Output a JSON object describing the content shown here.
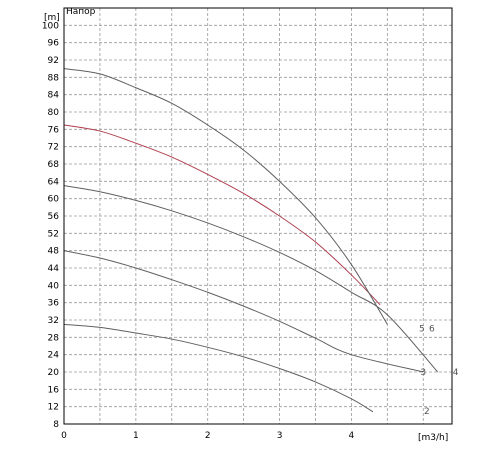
{
  "chart_data": {
    "type": "line",
    "title": "Напор",
    "ylabel": "[m]",
    "xlabel": "[m3/h]",
    "xlim": [
      0,
      5.4
    ],
    "ylim": [
      8,
      104
    ],
    "xticks": [
      0,
      1,
      2,
      3,
      4
    ],
    "yticks": [
      8,
      12,
      16,
      20,
      24,
      28,
      32,
      36,
      40,
      44,
      48,
      52,
      56,
      60,
      64,
      68,
      72,
      76,
      80,
      84,
      88,
      92,
      96,
      100
    ],
    "grid": true,
    "series": [
      {
        "name": "2",
        "color": "#606060",
        "x": [
          0,
          0.5,
          1,
          1.5,
          2,
          2.5,
          3,
          3.5,
          4,
          4.3
        ],
        "y": [
          31,
          30.3,
          29,
          27.6,
          25.7,
          23.5,
          20.8,
          17.7,
          13.8,
          10.8
        ]
      },
      {
        "name": "3",
        "color": "#606060",
        "x": [
          0,
          0.5,
          1,
          1.5,
          2,
          2.5,
          3,
          3.5,
          4,
          5.0
        ],
        "y": [
          48,
          46.3,
          44,
          41.3,
          38.4,
          35.2,
          31.7,
          27.8,
          24,
          20
        ]
      },
      {
        "name": "4",
        "color": "#606060",
        "x": [
          0,
          0.5,
          1,
          1.5,
          2,
          2.5,
          3,
          3.5,
          4,
          4.5,
          5.2
        ],
        "y": [
          63,
          61.6,
          59.6,
          57.2,
          54.4,
          51.2,
          47.6,
          43.4,
          38.4,
          33.2,
          20
        ]
      },
      {
        "name": "5",
        "color": "#b04050",
        "x": [
          0,
          0.5,
          1,
          1.5,
          2,
          2.5,
          3,
          3.5,
          4,
          4.4
        ],
        "y": [
          77,
          75.6,
          72.8,
          69.6,
          65.6,
          61.2,
          56,
          50,
          42.4,
          35.5
        ]
      },
      {
        "name": "6",
        "color": "#606060",
        "x": [
          0,
          0.5,
          1,
          1.5,
          2,
          2.5,
          3,
          3.5,
          4,
          4.5
        ],
        "y": [
          90,
          88.8,
          85.6,
          82,
          77,
          71.2,
          64,
          55.6,
          44.8,
          31
        ]
      }
    ],
    "end_labels": [
      {
        "text": "2",
        "x": 5.05,
        "y": 11
      },
      {
        "text": "3",
        "x": 5.0,
        "y": 20
      },
      {
        "text": "4",
        "x": 5.45,
        "y": 20
      },
      {
        "text": "5",
        "x": 4.98,
        "y": 30
      },
      {
        "text": "6",
        "x": 5.12,
        "y": 30
      }
    ]
  }
}
